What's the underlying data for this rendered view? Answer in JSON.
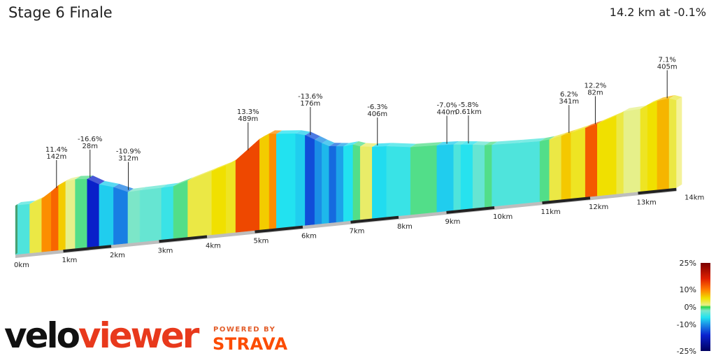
{
  "header": {
    "title": "Stage 6 Finale",
    "summary": "14.2 km at -0.1%"
  },
  "branding": {
    "velo": "velo",
    "viewer": "viewer",
    "powered_by": "POWERED BY",
    "strava": "STRAVA"
  },
  "colors": {
    "accent_red": "#e8391c",
    "strava_orange": "#fc4c02",
    "road_bar": "#222222"
  },
  "chart_data": {
    "type": "area",
    "title": "Stage 6 Finale",
    "xlabel": "",
    "ylabel": "",
    "x_unit": "km",
    "xlim": [
      0,
      14.2
    ],
    "x_ticks": [
      0,
      1,
      2,
      3,
      4,
      5,
      6,
      7,
      8,
      9,
      10,
      11,
      12,
      13,
      14
    ],
    "x_tick_labels": [
      "0km",
      "1km",
      "2km",
      "3km",
      "4km",
      "5km",
      "6km",
      "7km",
      "8km",
      "9km",
      "10km",
      "11km",
      "12km",
      "13km",
      "14km"
    ],
    "elevation_profile": {
      "x": [
        0.0,
        0.3,
        0.55,
        0.75,
        0.9,
        1.05,
        1.25,
        1.5,
        1.75,
        2.05,
        2.35,
        2.6,
        3.05,
        3.3,
        3.6,
        4.1,
        4.4,
        4.6,
        5.1,
        5.3,
        5.45,
        5.85,
        6.05,
        6.25,
        6.4,
        6.55,
        6.7,
        6.85,
        7.05,
        7.2,
        7.45,
        7.75,
        8.25,
        8.8,
        9.15,
        9.3,
        9.55,
        9.8,
        9.95,
        10.5,
        10.95,
        11.15,
        11.4,
        11.6,
        11.9,
        12.15,
        12.55,
        12.7,
        13.05,
        13.2,
        13.4,
        13.65,
        13.8
      ],
      "y": [
        0,
        0,
        10,
        25,
        38,
        45,
        48,
        46,
        30,
        20,
        5,
        6,
        7,
        8,
        18,
        35,
        45,
        55,
        100,
        110,
        108,
        104,
        98,
        85,
        75,
        66,
        64,
        62,
        64,
        58,
        54,
        52,
        44,
        42,
        40,
        38,
        35,
        31,
        30,
        28,
        27,
        29,
        35,
        40,
        48,
        55,
        70,
        78,
        80,
        88,
        95,
        98,
        92
      ]
    },
    "gradient_segments": [
      {
        "from": 0.0,
        "to": 0.3,
        "gradient": "-4%"
      },
      {
        "from": 0.3,
        "to": 0.55,
        "gradient": "3%"
      },
      {
        "from": 0.55,
        "to": 0.75,
        "gradient": "9%"
      },
      {
        "from": 0.75,
        "to": 0.9,
        "gradient": "11.4%"
      },
      {
        "from": 0.9,
        "to": 1.05,
        "gradient": "6%"
      },
      {
        "from": 1.05,
        "to": 1.25,
        "gradient": "1%"
      },
      {
        "from": 1.25,
        "to": 1.5,
        "gradient": "-1%"
      },
      {
        "from": 1.5,
        "to": 1.75,
        "gradient": "-16.6%"
      },
      {
        "from": 1.75,
        "to": 2.05,
        "gradient": "-7%"
      },
      {
        "from": 2.05,
        "to": 2.35,
        "gradient": "-10.9%"
      },
      {
        "from": 2.35,
        "to": 2.6,
        "gradient": "-2%"
      },
      {
        "from": 2.6,
        "to": 3.05,
        "gradient": "-3%"
      },
      {
        "from": 3.05,
        "to": 3.3,
        "gradient": "-5%"
      },
      {
        "from": 3.3,
        "to": 3.6,
        "gradient": "-1%"
      },
      {
        "from": 3.6,
        "to": 4.1,
        "gradient": "3%"
      },
      {
        "from": 4.1,
        "to": 4.4,
        "gradient": "5%"
      },
      {
        "from": 4.4,
        "to": 4.6,
        "gradient": "4%"
      },
      {
        "from": 4.6,
        "to": 5.1,
        "gradient": "13.3%"
      },
      {
        "from": 5.1,
        "to": 5.3,
        "gradient": "6%"
      },
      {
        "from": 5.3,
        "to": 5.45,
        "gradient": "9%"
      },
      {
        "from": 5.45,
        "to": 5.85,
        "gradient": "-6%"
      },
      {
        "from": 5.85,
        "to": 6.05,
        "gradient": "-7%"
      },
      {
        "from": 6.05,
        "to": 6.25,
        "gradient": "-13.6%"
      },
      {
        "from": 6.25,
        "to": 6.4,
        "gradient": "-10%"
      },
      {
        "from": 6.4,
        "to": 6.55,
        "gradient": "-8%"
      },
      {
        "from": 6.55,
        "to": 6.7,
        "gradient": "-12%"
      },
      {
        "from": 6.7,
        "to": 6.85,
        "gradient": "-9%"
      },
      {
        "from": 6.85,
        "to": 7.05,
        "gradient": "-6%"
      },
      {
        "from": 7.05,
        "to": 7.2,
        "gradient": "-1%"
      },
      {
        "from": 7.2,
        "to": 7.45,
        "gradient": "2%"
      },
      {
        "from": 7.45,
        "to": 7.75,
        "gradient": "-6.3%"
      },
      {
        "from": 7.75,
        "to": 8.25,
        "gradient": "-5%"
      },
      {
        "from": 8.25,
        "to": 8.8,
        "gradient": "-1%"
      },
      {
        "from": 8.8,
        "to": 9.15,
        "gradient": "-7.0%"
      },
      {
        "from": 9.15,
        "to": 9.3,
        "gradient": "-4%"
      },
      {
        "from": 9.3,
        "to": 9.55,
        "gradient": "-5.8%"
      },
      {
        "from": 9.55,
        "to": 9.8,
        "gradient": "-3%"
      },
      {
        "from": 9.8,
        "to": 9.95,
        "gradient": "-1%"
      },
      {
        "from": 9.95,
        "to": 10.5,
        "gradient": "-4%"
      },
      {
        "from": 10.5,
        "to": 10.95,
        "gradient": "-4%"
      },
      {
        "from": 10.95,
        "to": 11.15,
        "gradient": "-1%"
      },
      {
        "from": 11.15,
        "to": 11.4,
        "gradient": "3%"
      },
      {
        "from": 11.4,
        "to": 11.6,
        "gradient": "6.2%"
      },
      {
        "from": 11.6,
        "to": 11.9,
        "gradient": "4%"
      },
      {
        "from": 11.9,
        "to": 12.15,
        "gradient": "12.2%"
      },
      {
        "from": 12.15,
        "to": 12.55,
        "gradient": "5%"
      },
      {
        "from": 12.55,
        "to": 12.7,
        "gradient": "3%"
      },
      {
        "from": 12.7,
        "to": 13.05,
        "gradient": "1%"
      },
      {
        "from": 13.05,
        "to": 13.2,
        "gradient": "4%"
      },
      {
        "from": 13.2,
        "to": 13.4,
        "gradient": "5%"
      },
      {
        "from": 13.4,
        "to": 13.65,
        "gradient": "7.1%"
      },
      {
        "from": 13.65,
        "to": 13.8,
        "gradient": "3%"
      }
    ],
    "annotations": [
      {
        "x": 0.8,
        "gradient": "11.4%",
        "length": "142m"
      },
      {
        "x": 1.5,
        "gradient": "-16.6%",
        "length": "28m"
      },
      {
        "x": 2.3,
        "gradient": "-10.9%",
        "length": "312m"
      },
      {
        "x": 4.8,
        "gradient": "13.3%",
        "length": "489m"
      },
      {
        "x": 6.1,
        "gradient": "-13.6%",
        "length": "176m"
      },
      {
        "x": 7.5,
        "gradient": "-6.3%",
        "length": "406m"
      },
      {
        "x": 8.95,
        "gradient": "-7.0%",
        "length": "440m"
      },
      {
        "x": 9.4,
        "gradient": "-5.8%",
        "length": "0.61km"
      },
      {
        "x": 11.5,
        "gradient": "6.2%",
        "length": "341m"
      },
      {
        "x": 12.05,
        "gradient": "12.2%",
        "length": "82m"
      },
      {
        "x": 13.55,
        "gradient": "7.1%",
        "length": "405m"
      }
    ],
    "legend": {
      "placement": "bottom-right",
      "tick_labels": [
        "25%",
        "10%",
        "0%",
        "-10%",
        "-25%"
      ],
      "tick_values": [
        25,
        10,
        0,
        -10,
        -25
      ],
      "color_stops": [
        {
          "value": 25,
          "color": "#7a0000"
        },
        {
          "value": 16,
          "color": "#e02000"
        },
        {
          "value": 10,
          "color": "#ff7a00"
        },
        {
          "value": 5,
          "color": "#f0e000"
        },
        {
          "value": 1,
          "color": "#e6f08a"
        },
        {
          "value": 0,
          "color": "#28d64a"
        },
        {
          "value": -2,
          "color": "#7ce6c8"
        },
        {
          "value": -6,
          "color": "#22e2f0"
        },
        {
          "value": -10,
          "color": "#1a8ee6"
        },
        {
          "value": -16,
          "color": "#0a22d0"
        },
        {
          "value": -25,
          "color": "#000060"
        }
      ]
    }
  }
}
